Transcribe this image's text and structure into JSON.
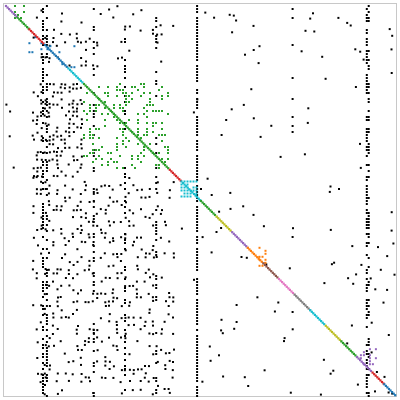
{
  "chart_data": {
    "type": "heatmap",
    "title": "",
    "xlabel": "",
    "ylabel": "",
    "xlim": [
      0,
      1
    ],
    "ylim": [
      0,
      1
    ],
    "grid": false,
    "legend": "none",
    "description_kind": "sparse matrix nonzero pattern",
    "colors": {
      "background": "#ffffff",
      "frame": "#c8c8c8",
      "offblock": "#000000",
      "block_green": "#2ca02c",
      "block_blue": "#1f77b4",
      "block_cyan": "#17becf",
      "block_red": "#d62728",
      "block_orange": "#ff7f0e",
      "block_purple": "#9467bd",
      "block_olive": "#bcbd22",
      "block_pink": "#e377c2",
      "block_brown": "#8c564b",
      "block_gray": "#7f7f7f"
    },
    "diagonal_segments": [
      {
        "start": 0.0,
        "end": 0.03,
        "color": "#9467bd"
      },
      {
        "start": 0.03,
        "end": 0.06,
        "color": "#2ca02c"
      },
      {
        "start": 0.06,
        "end": 0.1,
        "color": "#d62728"
      },
      {
        "start": 0.1,
        "end": 0.16,
        "color": "#1f77b4"
      },
      {
        "start": 0.16,
        "end": 0.2,
        "color": "#17becf"
      },
      {
        "start": 0.2,
        "end": 0.42,
        "color": "#2ca02c"
      },
      {
        "start": 0.42,
        "end": 0.45,
        "color": "#d62728"
      },
      {
        "start": 0.45,
        "end": 0.5,
        "color": "#17becf"
      },
      {
        "start": 0.5,
        "end": 0.54,
        "color": "#2ca02c"
      },
      {
        "start": 0.54,
        "end": 0.58,
        "color": "#bcbd22"
      },
      {
        "start": 0.58,
        "end": 0.62,
        "color": "#9467bd"
      },
      {
        "start": 0.62,
        "end": 0.66,
        "color": "#ff7f0e"
      },
      {
        "start": 0.66,
        "end": 0.7,
        "color": "#8c564b"
      },
      {
        "start": 0.7,
        "end": 0.74,
        "color": "#e377c2"
      },
      {
        "start": 0.74,
        "end": 0.78,
        "color": "#7f7f7f"
      },
      {
        "start": 0.78,
        "end": 0.82,
        "color": "#17becf"
      },
      {
        "start": 0.82,
        "end": 0.86,
        "color": "#bcbd22"
      },
      {
        "start": 0.86,
        "end": 0.9,
        "color": "#2ca02c"
      },
      {
        "start": 0.9,
        "end": 0.94,
        "color": "#9467bd"
      },
      {
        "start": 0.94,
        "end": 0.97,
        "color": "#d62728"
      },
      {
        "start": 0.97,
        "end": 1.0,
        "color": "#1f77b4"
      }
    ],
    "colored_blocks": [
      {
        "r0": 0.2,
        "r1": 0.42,
        "c0": 0.2,
        "c1": 0.42,
        "color": "#2ca02c",
        "density": 0.22
      },
      {
        "r0": 0.08,
        "r1": 0.16,
        "c0": 0.06,
        "c1": 0.18,
        "color": "#1f77b4",
        "density": 0.1
      },
      {
        "r0": 0.45,
        "r1": 0.49,
        "c0": 0.45,
        "c1": 0.49,
        "color": "#17becf",
        "density": 0.85
      },
      {
        "r0": 0.0,
        "r1": 0.04,
        "c0": 0.0,
        "c1": 0.05,
        "color": "#2ca02c",
        "density": 0.3
      },
      {
        "r0": 0.62,
        "r1": 0.67,
        "c0": 0.65,
        "c1": 0.67,
        "color": "#ff7f0e",
        "density": 0.5
      },
      {
        "r0": 0.88,
        "r1": 0.92,
        "c0": 0.91,
        "c1": 0.95,
        "color": "#9467bd",
        "density": 0.35
      }
    ],
    "black_regions": [
      {
        "r0": 0.0,
        "r1": 0.16,
        "c0": 0.07,
        "c1": 0.43,
        "density": 0.1
      },
      {
        "r0": 0.2,
        "r1": 0.44,
        "c0": 0.07,
        "c1": 0.2,
        "density": 0.42
      },
      {
        "r0": 0.44,
        "r1": 1.0,
        "c0": 0.07,
        "c1": 0.43,
        "density": 0.2
      },
      {
        "r0": 0.2,
        "r1": 0.44,
        "c0": 0.0,
        "c1": 0.04,
        "density": 0.05
      },
      {
        "r0": 0.2,
        "r1": 1.0,
        "c0": 0.43,
        "c1": 0.5,
        "density": 0.015
      }
    ],
    "black_columns": [
      {
        "c": 0.095,
        "r0": 0.0,
        "r1": 1.0,
        "density": 0.55
      },
      {
        "c": 0.105,
        "r0": 0.0,
        "r1": 1.0,
        "density": 0.45
      },
      {
        "c": 0.225,
        "r0": 0.0,
        "r1": 1.0,
        "density": 0.4
      },
      {
        "c": 0.305,
        "r0": 0.0,
        "r1": 1.0,
        "density": 0.4
      },
      {
        "c": 0.385,
        "r0": 0.0,
        "r1": 1.0,
        "density": 0.35
      },
      {
        "c": 0.49,
        "r0": 0.0,
        "r1": 1.0,
        "density": 0.85
      },
      {
        "c": 0.735,
        "r0": 0.0,
        "r1": 1.0,
        "density": 0.1
      },
      {
        "c": 0.925,
        "r0": 0.0,
        "r1": 1.0,
        "density": 0.55
      },
      {
        "c": 0.93,
        "r0": 0.0,
        "r1": 1.0,
        "density": 0.4
      }
    ],
    "sparse_scatter": [
      {
        "r0": 0.0,
        "r1": 1.0,
        "c0": 0.5,
        "c1": 1.0,
        "count": 120
      }
    ]
  }
}
